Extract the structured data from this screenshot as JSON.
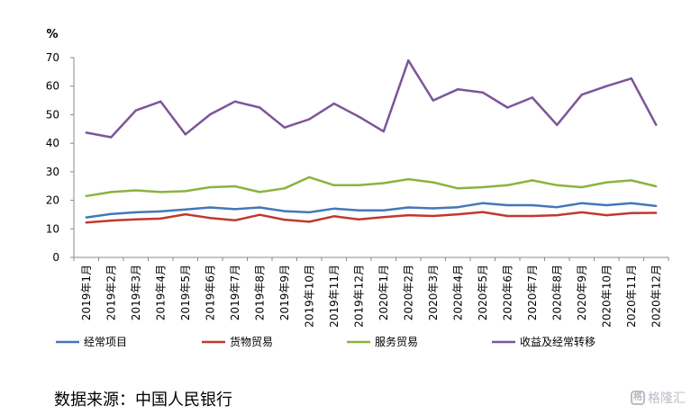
{
  "chart_data": {
    "type": "line",
    "ylabel": "%",
    "ylim": [
      0,
      70
    ],
    "yticks": [
      0,
      10,
      20,
      30,
      40,
      50,
      60,
      70
    ],
    "grid": false,
    "legend_position": "bottom",
    "categories": [
      "2019年1月",
      "2019年2月",
      "2019年3月",
      "2019年4月",
      "2019年5月",
      "2019年6月",
      "2019年7月",
      "2019年8月",
      "2019年9月",
      "2019年10月",
      "2019年11月",
      "2019年12月",
      "2020年1月",
      "2020年2月",
      "2020年3月",
      "2020年4月",
      "2020年5月",
      "2020年6月",
      "2020年7月",
      "2020年8月",
      "2020年9月",
      "2020年10月",
      "2020年11月",
      "2020年12月"
    ],
    "series": [
      {
        "name": "经常项目",
        "color": "#4477b8",
        "values": [
          14.0,
          15.2,
          15.8,
          16.1,
          16.8,
          17.5,
          16.9,
          17.5,
          16.2,
          15.8,
          17.1,
          16.5,
          16.5,
          17.5,
          17.2,
          17.6,
          19.0,
          18.3,
          18.3,
          17.6,
          19.0,
          18.3,
          19.0,
          18.0
        ]
      },
      {
        "name": "货物贸易",
        "color": "#c0392e",
        "values": [
          12.2,
          12.9,
          13.3,
          13.6,
          15.1,
          13.8,
          13.0,
          14.9,
          13.2,
          12.5,
          14.4,
          13.3,
          14.1,
          14.8,
          14.5,
          15.1,
          15.9,
          14.5,
          14.5,
          14.8,
          15.8,
          14.8,
          15.5,
          15.6
        ]
      },
      {
        "name": "服务贸易",
        "color": "#8cb33e",
        "values": [
          21.5,
          22.9,
          23.5,
          22.9,
          23.2,
          24.6,
          24.9,
          22.9,
          24.2,
          28.1,
          25.3,
          25.3,
          26.0,
          27.4,
          26.3,
          24.2,
          24.6,
          25.3,
          27.0,
          25.3,
          24.6,
          26.3,
          27.0,
          24.9
        ]
      },
      {
        "name": "收益及经常转移",
        "color": "#7c559a",
        "values": [
          43.7,
          42.1,
          51.5,
          54.6,
          43.1,
          50.1,
          54.6,
          52.5,
          45.5,
          48.4,
          53.9,
          49.3,
          44.1,
          69.0,
          55.0,
          58.9,
          57.8,
          52.5,
          56.0,
          46.4,
          57.0,
          60.0,
          62.7,
          46.4
        ]
      }
    ]
  },
  "source_text": "数据来源：中国人民银行",
  "watermark": {
    "icon": "格",
    "text": "格隆汇"
  }
}
